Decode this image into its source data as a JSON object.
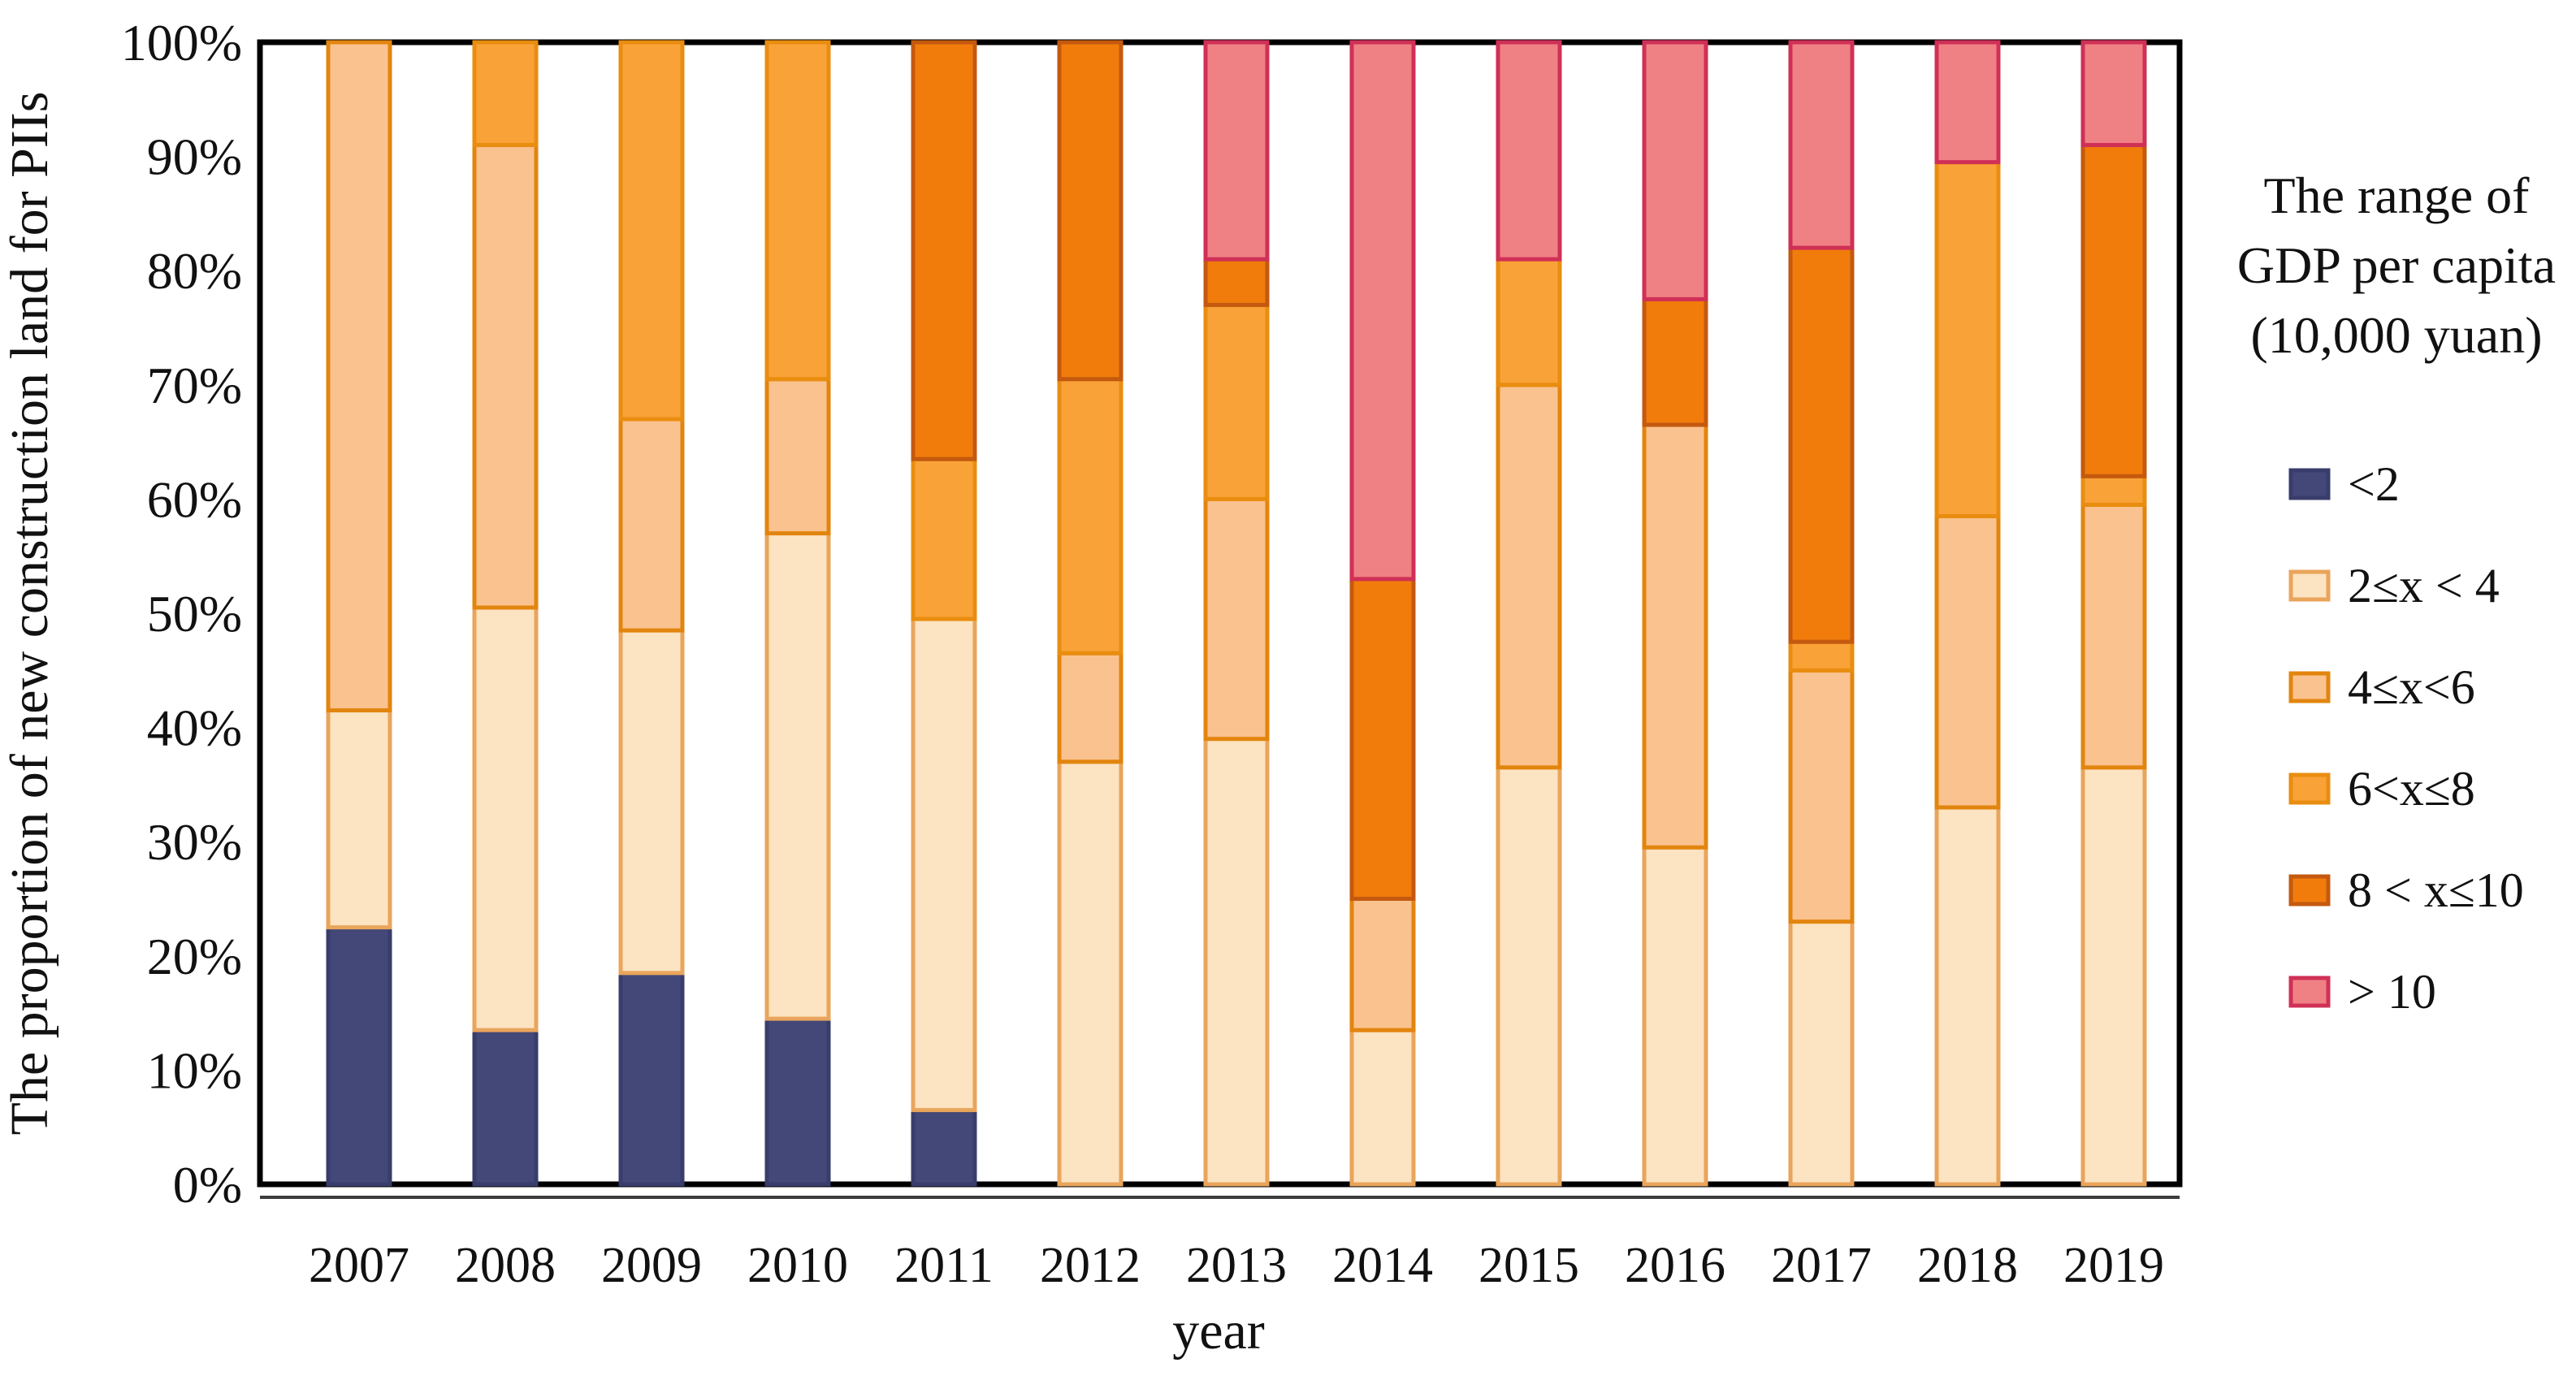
{
  "chart_data": {
    "type": "bar",
    "subtype": "stacked-100-percent",
    "title": "",
    "xlabel": "year",
    "ylabel": "The proportion of new construction land for PIIs",
    "ylim": [
      0,
      100
    ],
    "grid": false,
    "y_ticks": [
      "0%",
      "10%",
      "20%",
      "30%",
      "40%",
      "50%",
      "60%",
      "70%",
      "80%",
      "90%",
      "100%"
    ],
    "categories": [
      "2007",
      "2008",
      "2009",
      "2010",
      "2011",
      "2012",
      "2013",
      "2014",
      "2015",
      "2016",
      "2017",
      "2018",
      "2019"
    ],
    "legend": {
      "position": "right",
      "title_lines": [
        "The range of",
        "GDP per capita",
        "(10,000 yuan)"
      ]
    },
    "series": [
      {
        "name": "<2",
        "fill": "#434878",
        "border": "#383D6B",
        "values": [
          22.5,
          13.5,
          18.5,
          14.5,
          6.5,
          0,
          0,
          0,
          0,
          0,
          0,
          0,
          0
        ]
      },
      {
        "name": "2≤x < 4",
        "fill": "#FCE3C1",
        "border": "#E9A55C",
        "values": [
          19,
          37,
          30,
          42.5,
          43,
          37,
          39,
          13.5,
          36.5,
          29.5,
          23,
          33,
          36.5
        ]
      },
      {
        "name": "4≤x<6",
        "fill": "#FAC28E",
        "border": "#E2850F",
        "values": [
          58.5,
          40.5,
          18.5,
          13.5,
          0,
          9.5,
          21,
          11.5,
          33.5,
          37,
          22,
          25.5,
          23
        ]
      },
      {
        "name": "6<x≤8",
        "fill": "#F9A238",
        "border": "#E98D10",
        "values": [
          0,
          9,
          33,
          29.5,
          14,
          24,
          17,
          0,
          11,
          0,
          2.5,
          31,
          2.5
        ]
      },
      {
        "name": "8 < x≤10",
        "fill": "#F17C0C",
        "border": "#C4590F",
        "values": [
          0,
          0,
          0,
          0,
          36.5,
          29.5,
          4,
          28,
          0,
          11,
          34.5,
          0,
          29
        ]
      },
      {
        "name": "> 10",
        "fill": "#EF8184",
        "border": "#D03056",
        "values": [
          0,
          0,
          0,
          0,
          0,
          0,
          19,
          47,
          19,
          22.5,
          18,
          10.5,
          9
        ]
      }
    ]
  }
}
